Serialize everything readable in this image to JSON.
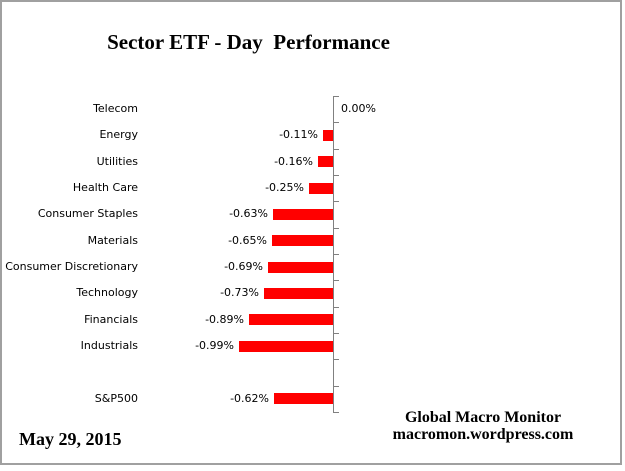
{
  "page": {
    "background": "#ffffff",
    "border_color": "#a0a0a0"
  },
  "title": "Sector ETF - Day  Performance",
  "footer": {
    "date": "May 29, 2015",
    "attribution_line1": "Global Macro Monitor",
    "attribution_line2": "macromon.wordpress.com"
  },
  "chart_data": {
    "type": "bar",
    "orientation": "horizontal",
    "title": "Sector ETF - Day  Performance",
    "unit": "percent",
    "categories": [
      "Telecom",
      "Energy",
      "Utilities",
      "Health Care",
      "Consumer Staples",
      "Materials",
      "Consumer Discretionary",
      "Technology",
      "Financials",
      "Industrials",
      "",
      "S&P500"
    ],
    "values": [
      0.0,
      -0.11,
      -0.16,
      -0.25,
      -0.63,
      -0.65,
      -0.69,
      -0.73,
      -0.89,
      -0.99,
      null,
      -0.62
    ],
    "data_labels": [
      "0.00%",
      "-0.11%",
      "-0.16%",
      "-0.25%",
      "-0.63%",
      "-0.65%",
      "-0.69%",
      "-0.73%",
      "-0.89%",
      "-0.99%",
      "",
      "-0.62%"
    ],
    "bar_color": "#ff0000",
    "axis_color": "#808080",
    "value_axis": {
      "max": 0,
      "zero_line_shown": true,
      "tick_mark_count": 13
    },
    "grid": false,
    "legend": "none",
    "data_label_position": "outside-end"
  }
}
